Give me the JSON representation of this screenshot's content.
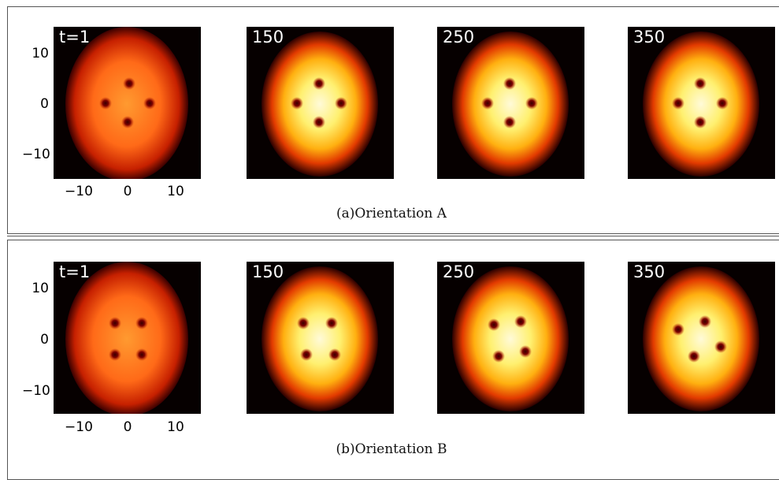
{
  "panels": [
    {
      "caption": "(a)Orientation A",
      "y_ticks": [
        "10",
        "0",
        "−10"
      ],
      "x_ticks": [
        "−10",
        "0",
        "10"
      ],
      "frames": [
        {
          "label": "t=1"
        },
        {
          "label": "150"
        },
        {
          "label": "250"
        },
        {
          "label": "350"
        }
      ]
    },
    {
      "caption": "(b)Orientation B",
      "y_ticks": [
        "10",
        "0",
        "−10"
      ],
      "x_ticks": [
        "−10",
        "0",
        "10"
      ],
      "frames": [
        {
          "label": "t=1"
        },
        {
          "label": "150"
        },
        {
          "label": "250"
        },
        {
          "label": "350"
        }
      ]
    }
  ],
  "colors": {
    "background": "#060000",
    "cloud_center": "#fff8c0",
    "cloud_mid": "#ffc020",
    "cloud_edge": "#c01800",
    "vortex_core": "#5a0000"
  }
}
